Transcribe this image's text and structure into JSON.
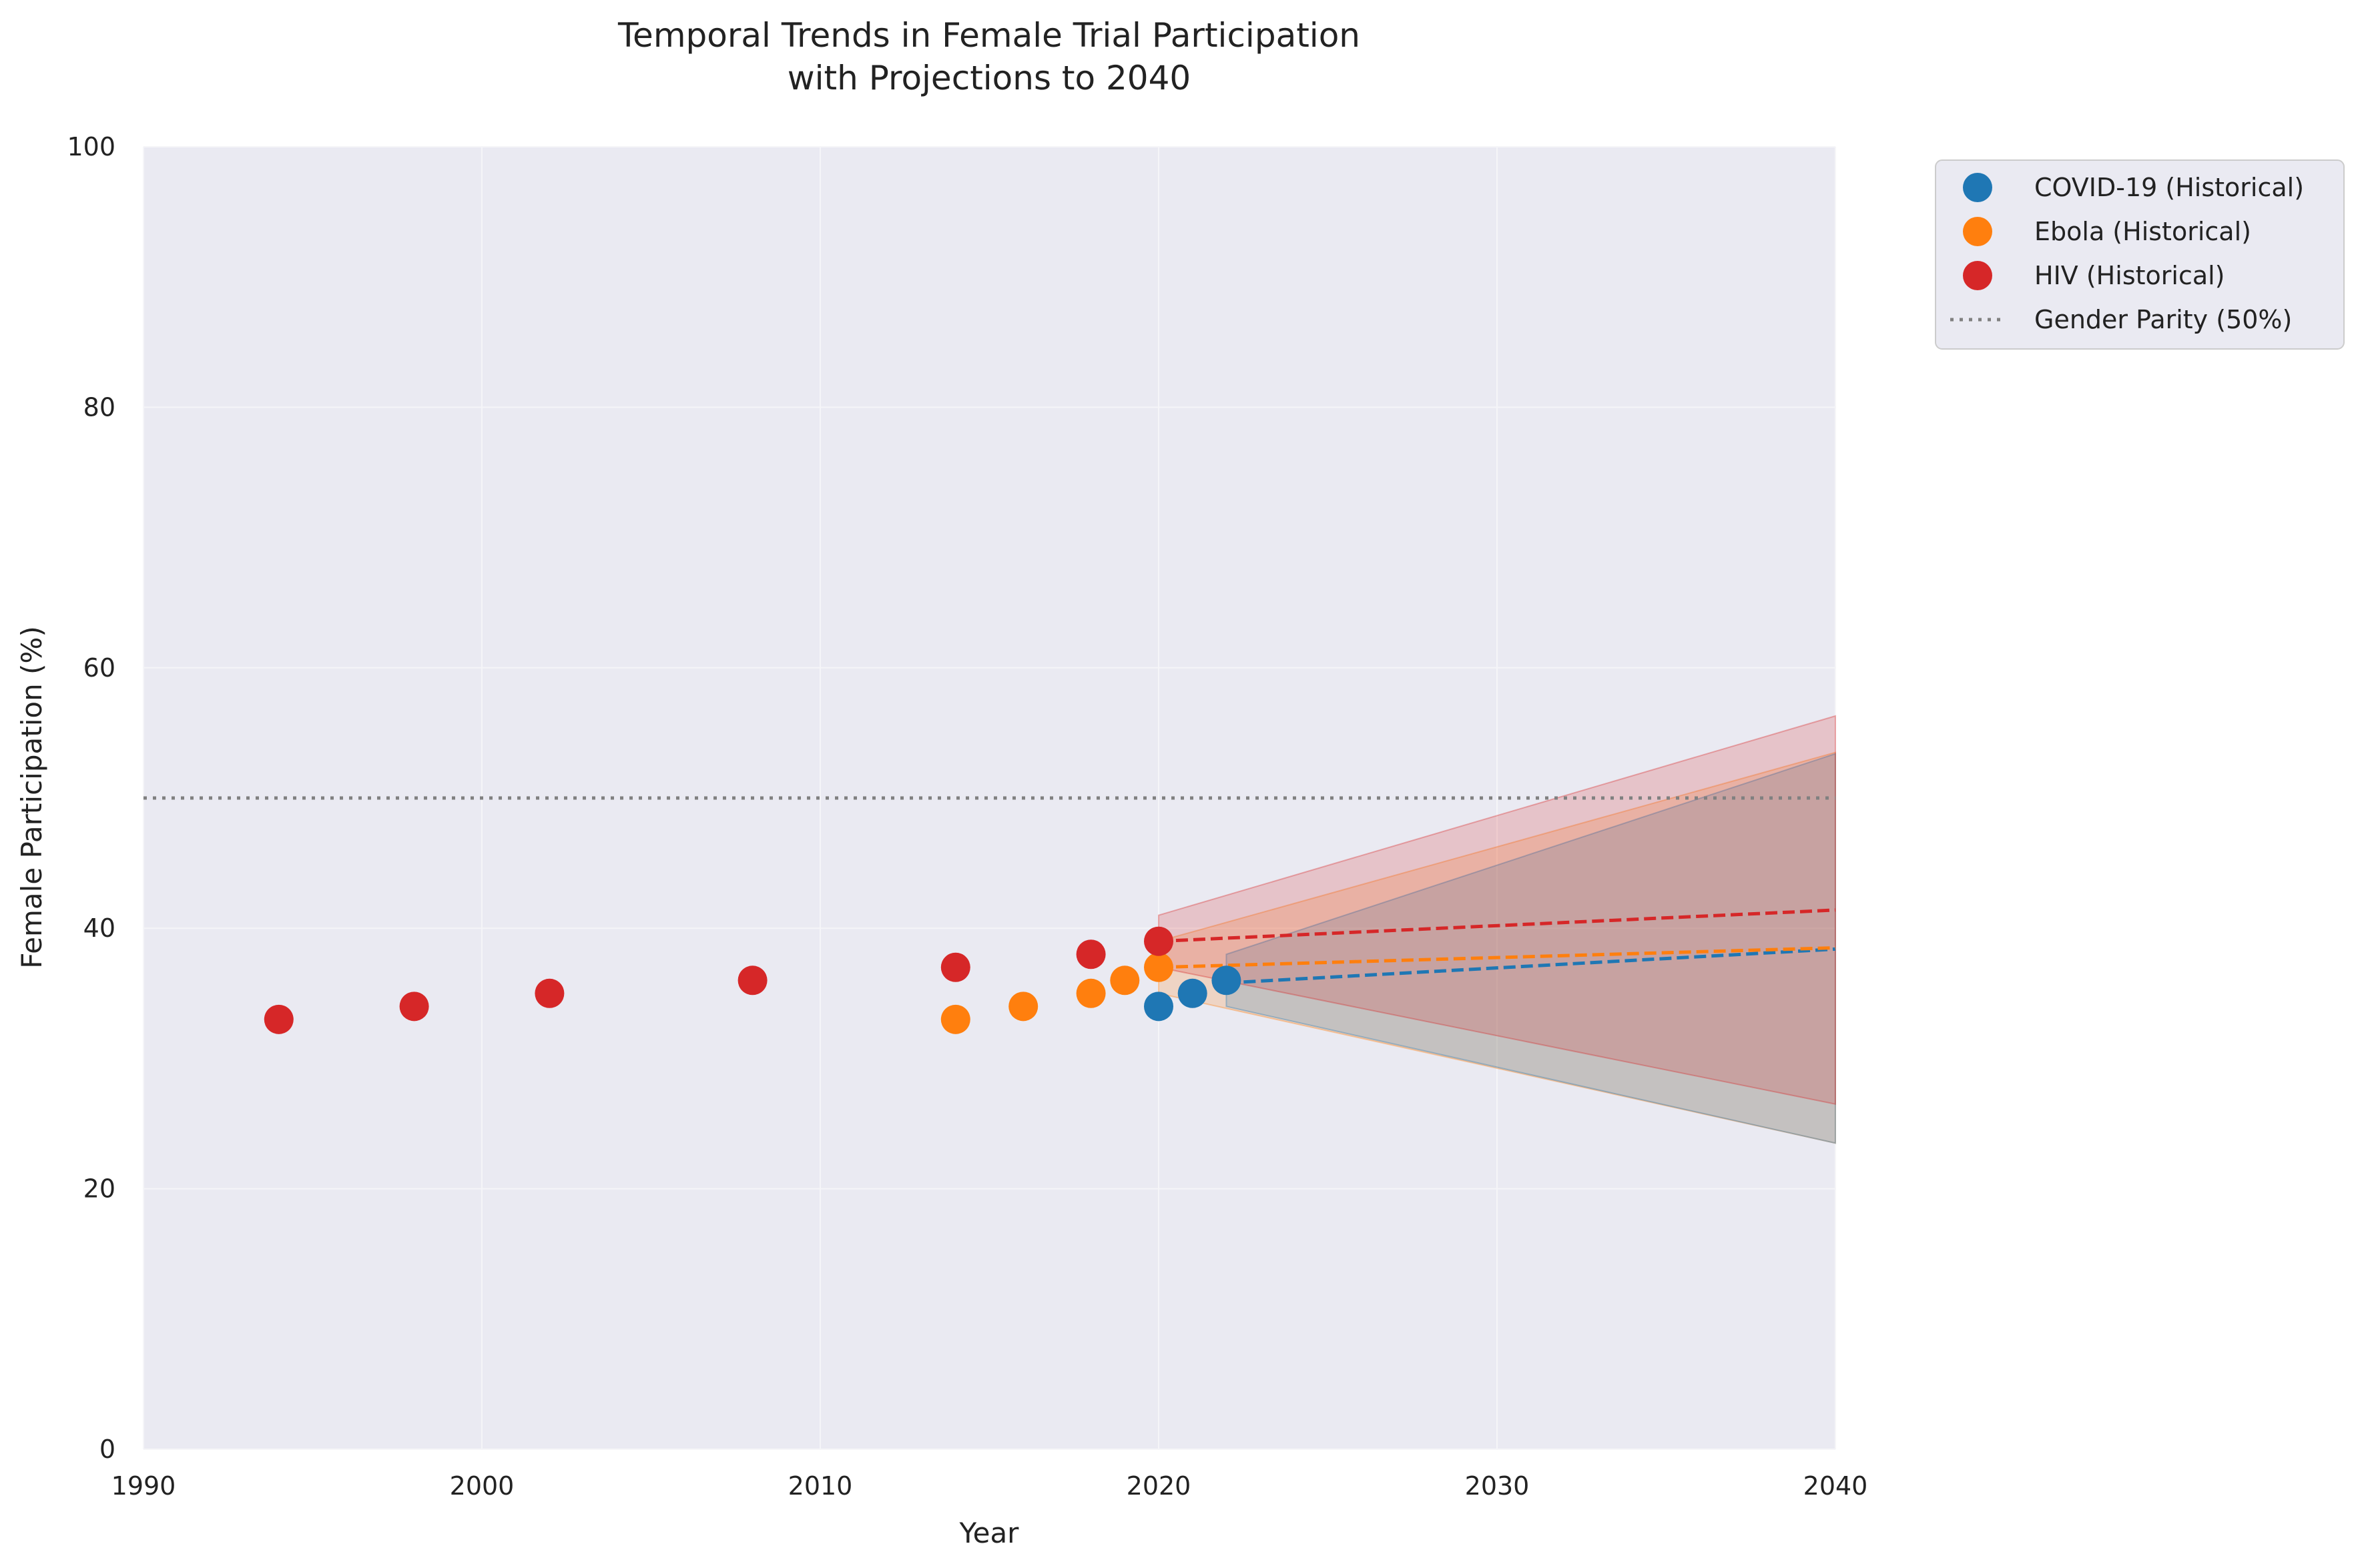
{
  "chart_data": {
    "type": "scatter",
    "title": [
      "Temporal Trends in Female Trial Participation",
      "with Projections to 2040"
    ],
    "xlabel": "Year",
    "ylabel": "Female Participation (%)",
    "xlim": [
      1990,
      2040
    ],
    "ylim": [
      0,
      100
    ],
    "xticks": [
      1990,
      2000,
      2010,
      2020,
      2030,
      2040
    ],
    "yticks": [
      0,
      20,
      40,
      60,
      80,
      100
    ],
    "grid": true,
    "legend_position": "outside-top-right",
    "reference_line": {
      "label": "Gender Parity (50%)",
      "y": 50,
      "color": "#808080"
    },
    "series": [
      {
        "name": "COVID-19 (Historical)",
        "color": "#1f77b4",
        "points": [
          [
            2020,
            34
          ],
          [
            2021,
            35
          ],
          [
            2022,
            36
          ]
        ],
        "projection": {
          "x": [
            2022,
            2040
          ],
          "y": [
            35.8,
            38.4
          ]
        },
        "band": {
          "x": [
            2022,
            2040
          ],
          "upper": [
            38,
            53.4
          ],
          "lower": [
            34,
            23.5
          ]
        }
      },
      {
        "name": "Ebola (Historical)",
        "color": "#ff7f0e",
        "points": [
          [
            2014,
            33
          ],
          [
            2016,
            34
          ],
          [
            2018,
            35
          ],
          [
            2019,
            36
          ],
          [
            2020,
            37
          ]
        ],
        "projection": {
          "x": [
            2020,
            2040
          ],
          "y": [
            37,
            38.5
          ]
        },
        "band": {
          "x": [
            2020,
            2040
          ],
          "upper": [
            39,
            53.5
          ],
          "lower": [
            35,
            23.5
          ]
        }
      },
      {
        "name": "HIV (Historical)",
        "color": "#d62728",
        "points": [
          [
            1994,
            33
          ],
          [
            1998,
            34
          ],
          [
            2002,
            35
          ],
          [
            2008,
            36
          ],
          [
            2014,
            37
          ],
          [
            2018,
            38
          ],
          [
            2020,
            39
          ]
        ],
        "projection": {
          "x": [
            2020,
            2040
          ],
          "y": [
            39,
            41.4
          ]
        },
        "band": {
          "x": [
            2020,
            2040
          ],
          "upper": [
            41,
            56.3
          ],
          "lower": [
            37,
            26.5
          ]
        }
      }
    ]
  }
}
